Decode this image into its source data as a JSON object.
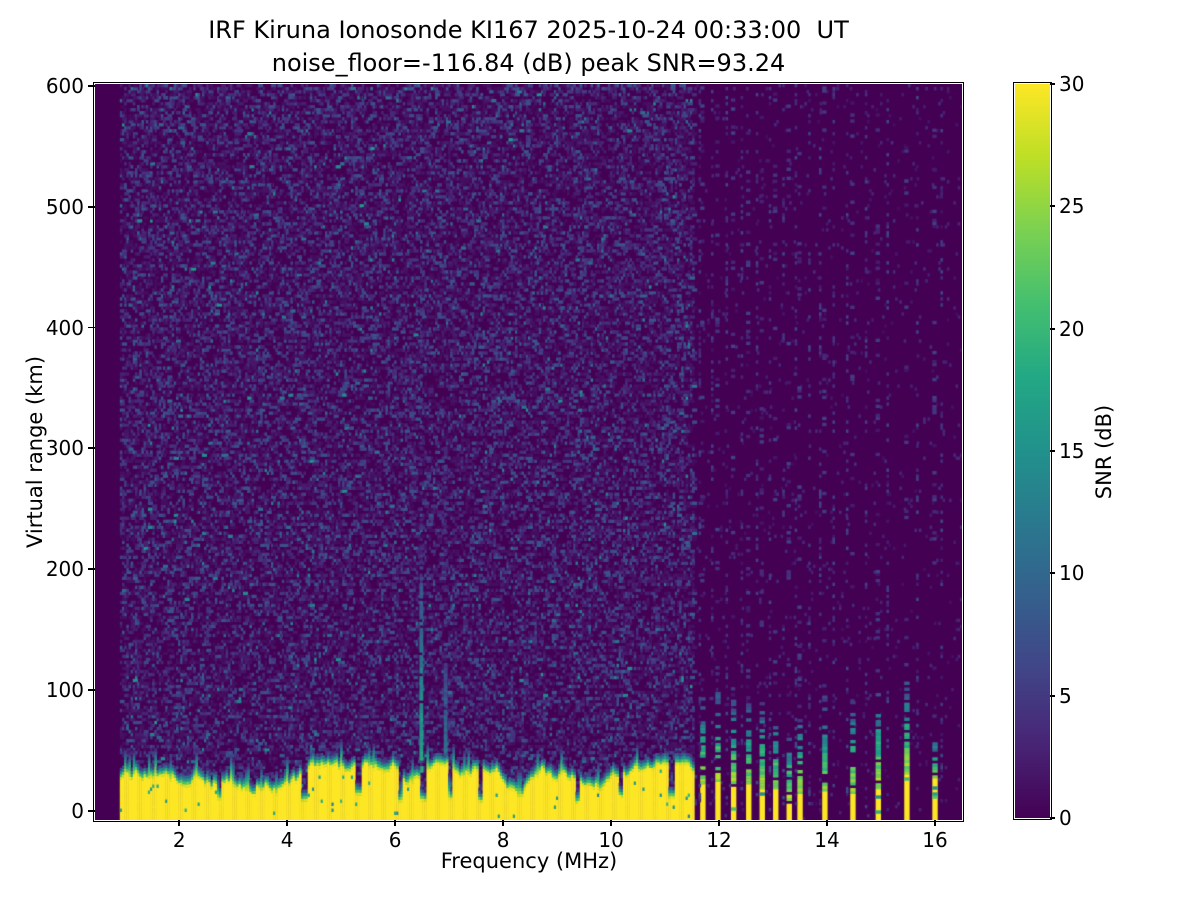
{
  "figure": {
    "background": "#ffffff",
    "text_color": "#000000"
  },
  "chart_data": {
    "type": "heatmap",
    "title": "IRF Kiruna Ionosonde KI167 2025-10-24 00:33:00  UT",
    "subtitle": "noise_floor=-116.84 (dB) peak SNR=93.24",
    "station": "KI167",
    "timestamp_ut": "2025-10-24 00:33:00",
    "noise_floor_db": -116.84,
    "peak_snr_db": 93.24,
    "xlabel": "Frequency (MHz)",
    "ylabel": "Virtual range (km)",
    "colorbar_label": "SNR (dB)",
    "xlim": [
      0.44,
      16.5
    ],
    "ylim": [
      -7.5,
      601.5
    ],
    "clim": [
      0,
      30
    ],
    "xticks": [
      2,
      4,
      6,
      8,
      10,
      12,
      14,
      16
    ],
    "yticks": [
      0,
      100,
      200,
      300,
      400,
      500,
      600
    ],
    "colorbar_ticks": [
      0,
      5,
      10,
      15,
      20,
      25,
      30
    ],
    "grid": false,
    "colormap": "viridis",
    "colormap_stops": [
      [
        0.0,
        "#440154"
      ],
      [
        0.1,
        "#482475"
      ],
      [
        0.2,
        "#414487"
      ],
      [
        0.3,
        "#355f8d"
      ],
      [
        0.4,
        "#2a788e"
      ],
      [
        0.5,
        "#21918c"
      ],
      [
        0.6,
        "#22a884"
      ],
      [
        0.7,
        "#44bf70"
      ],
      [
        0.8,
        "#7ad151"
      ],
      [
        0.9,
        "#bddf26"
      ],
      [
        1.0,
        "#fde725"
      ]
    ],
    "features": {
      "ground_band": "saturated 30 dB band from 0 to ~20-40 km spanning 0.9-11.5 MHz with ragged green/teal upper edge",
      "echo_streak": "weak vertical echo near 6.45 MHz reaching ~200 km",
      "rfi_stripes": "interference: broken vertical yellow stripes 11.6-16.1 MHz",
      "noise": "speckled 1-12 dB background noise over 0.9-11.5 MHz; column-aligned sparse noise above 11.6 MHz"
    },
    "render": {
      "seed": 167,
      "cols": 390,
      "rows": 245,
      "sweep_start": 0.9,
      "noise_density": 0.45,
      "stripe_w": 0.1,
      "band": {
        "f_end": 11.52,
        "top_min": 13,
        "top_max": 38,
        "notches": [
          [
            2.72,
            9
          ],
          [
            3.35,
            12
          ],
          [
            4.3,
            8
          ],
          [
            5.3,
            13
          ],
          [
            6.07,
            7
          ],
          [
            6.5,
            8
          ],
          [
            7.0,
            9
          ],
          [
            7.55,
            7
          ],
          [
            8.3,
            12
          ],
          [
            9.35,
            6
          ],
          [
            10.15,
            11
          ],
          [
            11.1,
            10
          ]
        ]
      },
      "streaks": [
        {
          "f": 6.45,
          "base": 32,
          "top": 195,
          "db": 17,
          "decay": 0.07,
          "fade": 430
        },
        {
          "f": 6.9,
          "base": 34,
          "top": 120,
          "db": 10,
          "decay": 0.07,
          "fade": 300
        }
      ],
      "stripes": [
        {
          "f": 11.7,
          "yellow_top": 22,
          "speckle_top": 95
        },
        {
          "f": 11.98,
          "yellow_top": 24,
          "speckle_top": 100
        },
        {
          "f": 12.27,
          "yellow_top": 20,
          "speckle_top": 95
        },
        {
          "f": 12.55,
          "yellow_top": 22,
          "speckle_top": 90
        },
        {
          "f": 12.8,
          "yellow_top": 18,
          "speckle_top": 88
        },
        {
          "f": 13.05,
          "yellow_top": 18,
          "speckle_top": 80
        },
        {
          "f": 13.3,
          "yellow_top": 6,
          "speckle_top": 70
        },
        {
          "f": 13.5,
          "yellow_top": 14,
          "speckle_top": 78
        },
        {
          "f": 13.96,
          "yellow_top": 16,
          "speckle_top": 95
        },
        {
          "f": 14.48,
          "yellow_top": 14,
          "speckle_top": 90
        },
        {
          "f": 14.95,
          "yellow_top": 18,
          "speckle_top": 100
        },
        {
          "f": 15.48,
          "yellow_top": 30,
          "speckle_top": 110
        },
        {
          "f": 16.0,
          "yellow_top": 27,
          "speckle_top": 60
        }
      ],
      "faint_columns": [
        11.62,
        11.85,
        12.12,
        12.4,
        12.68,
        12.92,
        13.17,
        13.4,
        13.65,
        13.85,
        14.1,
        14.35,
        14.7,
        15.1,
        15.65,
        16.1
      ]
    }
  }
}
